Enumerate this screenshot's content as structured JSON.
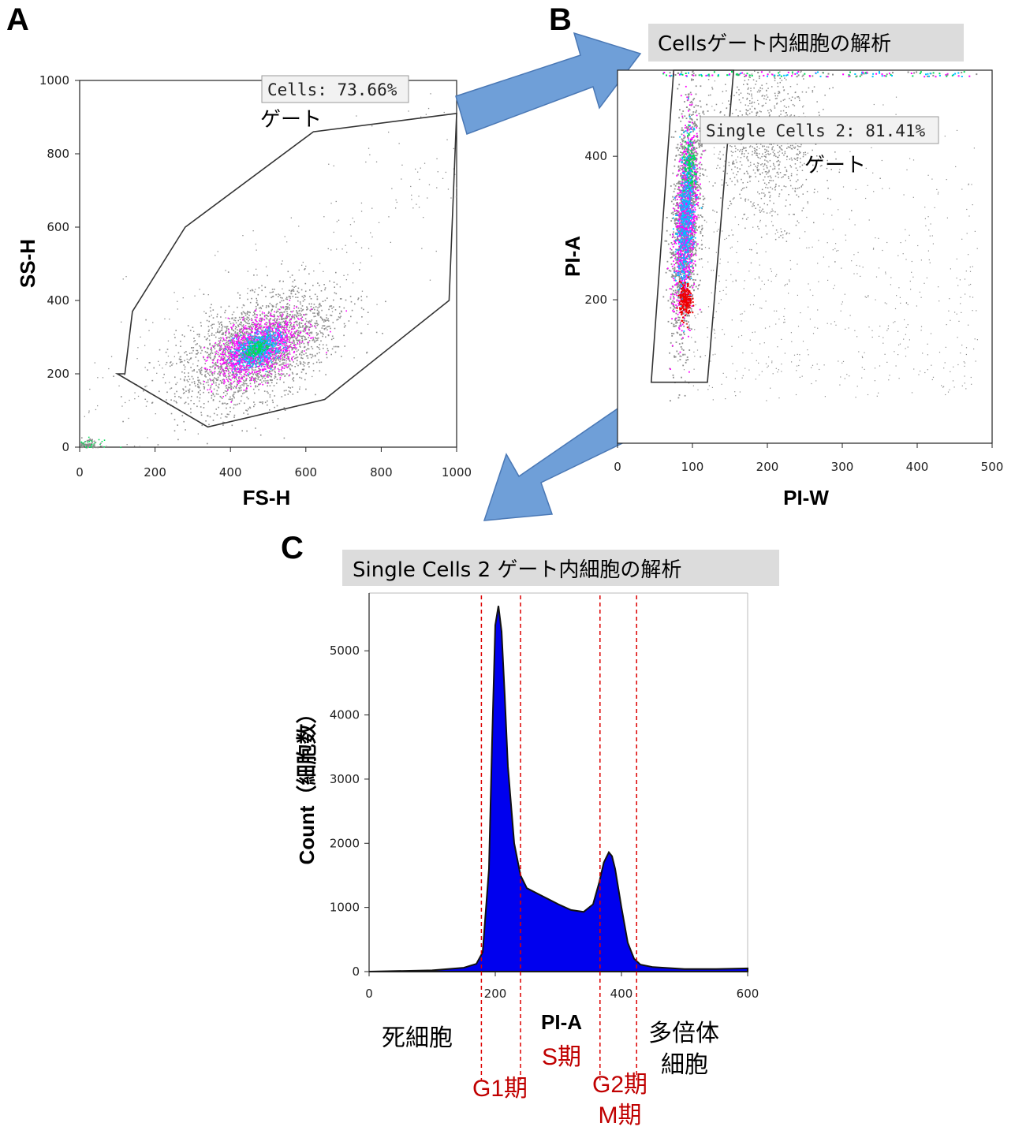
{
  "panels": {
    "A": {
      "letter": "A",
      "xlabel": "FS-H",
      "ylabel": "SS-H",
      "x_ticks": [
        "0",
        "200",
        "400",
        "600",
        "800",
        "1000"
      ],
      "y_ticks": [
        "0",
        "200",
        "400",
        "600",
        "800",
        "1000"
      ],
      "gate_label": "Cells: 73.66%",
      "gate_word": "ゲート"
    },
    "B": {
      "letter": "B",
      "banner": "Cellsゲート内細胞の解析",
      "xlabel": "PI-W",
      "ylabel": "PI-A",
      "x_ticks": [
        "0",
        "100",
        "200",
        "300",
        "400",
        "500"
      ],
      "y_ticks": [
        "200",
        "400"
      ],
      "gate_label": "Single Cells 2: 81.41%",
      "gate_word": "ゲート"
    },
    "C": {
      "letter": "C",
      "banner": "Single Cells 2 ゲート内細胞の解析",
      "xlabel": "PI-A",
      "ylabel": "Count（細胞数）",
      "x_ticks": [
        "0",
        "200",
        "400",
        "600"
      ],
      "y_ticks": [
        "0",
        "1000",
        "2000",
        "3000",
        "4000",
        "5000"
      ],
      "region_dead": "死細胞",
      "region_poly_1": "多倍体",
      "region_poly_2": "細胞",
      "phase_g1": "G1期",
      "phase_s": "S期",
      "phase_g2": "G2期",
      "phase_m": "M期"
    }
  },
  "colors": {
    "histogram_fill": "#0000ee",
    "gate_line": "#333333",
    "divider": "#dd0000",
    "phase_text": "#c00000",
    "arrow": "#6f9fd8",
    "banner_bg": "#dcdcdc",
    "density_low": "#8c8c8c",
    "density_mid": "#ff00ff",
    "density_high": "#00c0ff",
    "density_peak": "#00dd55",
    "density_max": "#ee0000"
  },
  "chart_data": [
    {
      "type": "scatter",
      "panel": "A",
      "xlabel": "FS-H",
      "ylabel": "SS-H",
      "xlim": [
        0,
        1000
      ],
      "ylim": [
        0,
        1000
      ],
      "gate_name": "Cells",
      "gate_percent": 73.66,
      "gate_polygon": [
        [
          120,
          200
        ],
        [
          140,
          370
        ],
        [
          280,
          600
        ],
        [
          620,
          860
        ],
        [
          1000,
          910
        ],
        [
          980,
          400
        ],
        [
          650,
          130
        ],
        [
          340,
          55
        ],
        [
          100,
          200
        ]
      ],
      "population_center": [
        470,
        270
      ]
    },
    {
      "type": "scatter",
      "panel": "B",
      "xlabel": "PI-W",
      "ylabel": "PI-A",
      "xlim": [
        0,
        500
      ],
      "ylim": [
        0,
        520
      ],
      "gate_name": "Single Cells 2",
      "gate_percent": 81.41,
      "gate_polygon": [
        [
          45,
          85
        ],
        [
          120,
          85
        ],
        [
          155,
          520
        ],
        [
          75,
          520
        ]
      ],
      "population_center": [
        90,
        200
      ],
      "secondary_cluster": [
        210,
        400
      ]
    },
    {
      "type": "area",
      "panel": "C",
      "xlabel": "PI-A",
      "ylabel": "Count",
      "xlim": [
        0,
        600
      ],
      "ylim": [
        0,
        5900
      ],
      "x": [
        0,
        100,
        150,
        170,
        180,
        190,
        195,
        200,
        205,
        210,
        215,
        220,
        230,
        240,
        250,
        270,
        300,
        320,
        340,
        355,
        365,
        372,
        380,
        385,
        390,
        400,
        410,
        420,
        430,
        450,
        500,
        550,
        600
      ],
      "y": [
        0,
        20,
        60,
        120,
        300,
        1600,
        3600,
        5400,
        5700,
        5300,
        4300,
        3200,
        2000,
        1500,
        1300,
        1200,
        1050,
        960,
        930,
        1050,
        1400,
        1700,
        1860,
        1800,
        1600,
        1000,
        450,
        200,
        110,
        70,
        40,
        40,
        50
      ],
      "dividers": [
        178,
        240,
        366,
        424
      ]
    }
  ]
}
